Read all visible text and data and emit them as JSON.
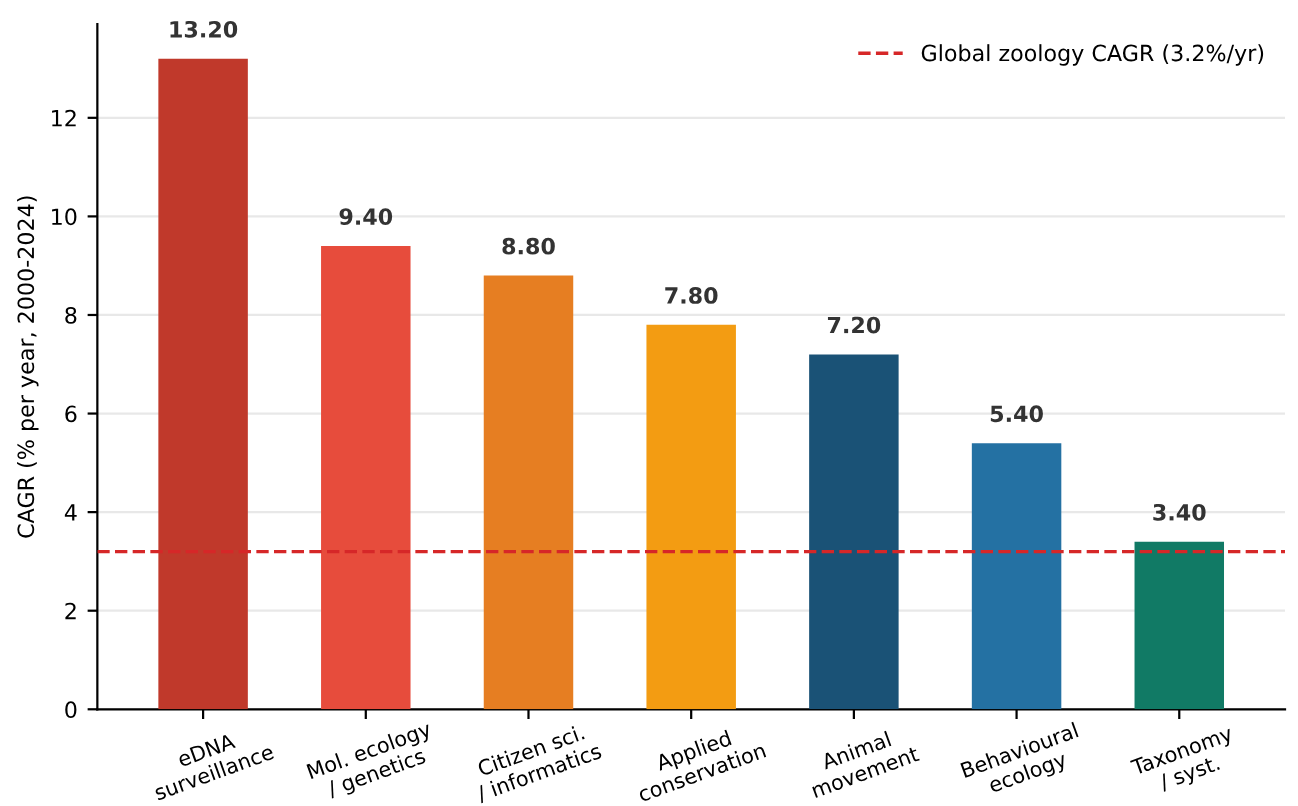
{
  "chart_data": {
    "type": "bar",
    "ylabel": "CAGR (% per year, 2000-2024)",
    "categories": [
      "eDNA\nsurveillance",
      "Mol. ecology\n/ genetics",
      "Citizen sci.\n/ informatics",
      "Applied\nconservation",
      "Animal\nmovement",
      "Behavioural\necology",
      "Taxonomy\n/ syst."
    ],
    "values": [
      13.2,
      9.4,
      8.8,
      7.8,
      7.2,
      5.4,
      3.4
    ],
    "value_labels": [
      "13.20",
      "9.40",
      "8.80",
      "7.80",
      "7.20",
      "5.40",
      "3.40"
    ],
    "colors": [
      "#c0392b",
      "#e74c3c",
      "#e67e22",
      "#f39c12",
      "#1a5276",
      "#2471a3",
      "#117a65"
    ],
    "ylim": [
      0,
      13.9
    ],
    "yticks": [
      0,
      2,
      4,
      6,
      8,
      10,
      12
    ],
    "ref_lines": [
      {
        "axis": "y",
        "value": 3.2,
        "label": "Global zoology CAGR (3.2%/yr)",
        "color": "#d62728",
        "line_style": "dashed"
      }
    ],
    "grid": "y",
    "legend": "top right"
  }
}
